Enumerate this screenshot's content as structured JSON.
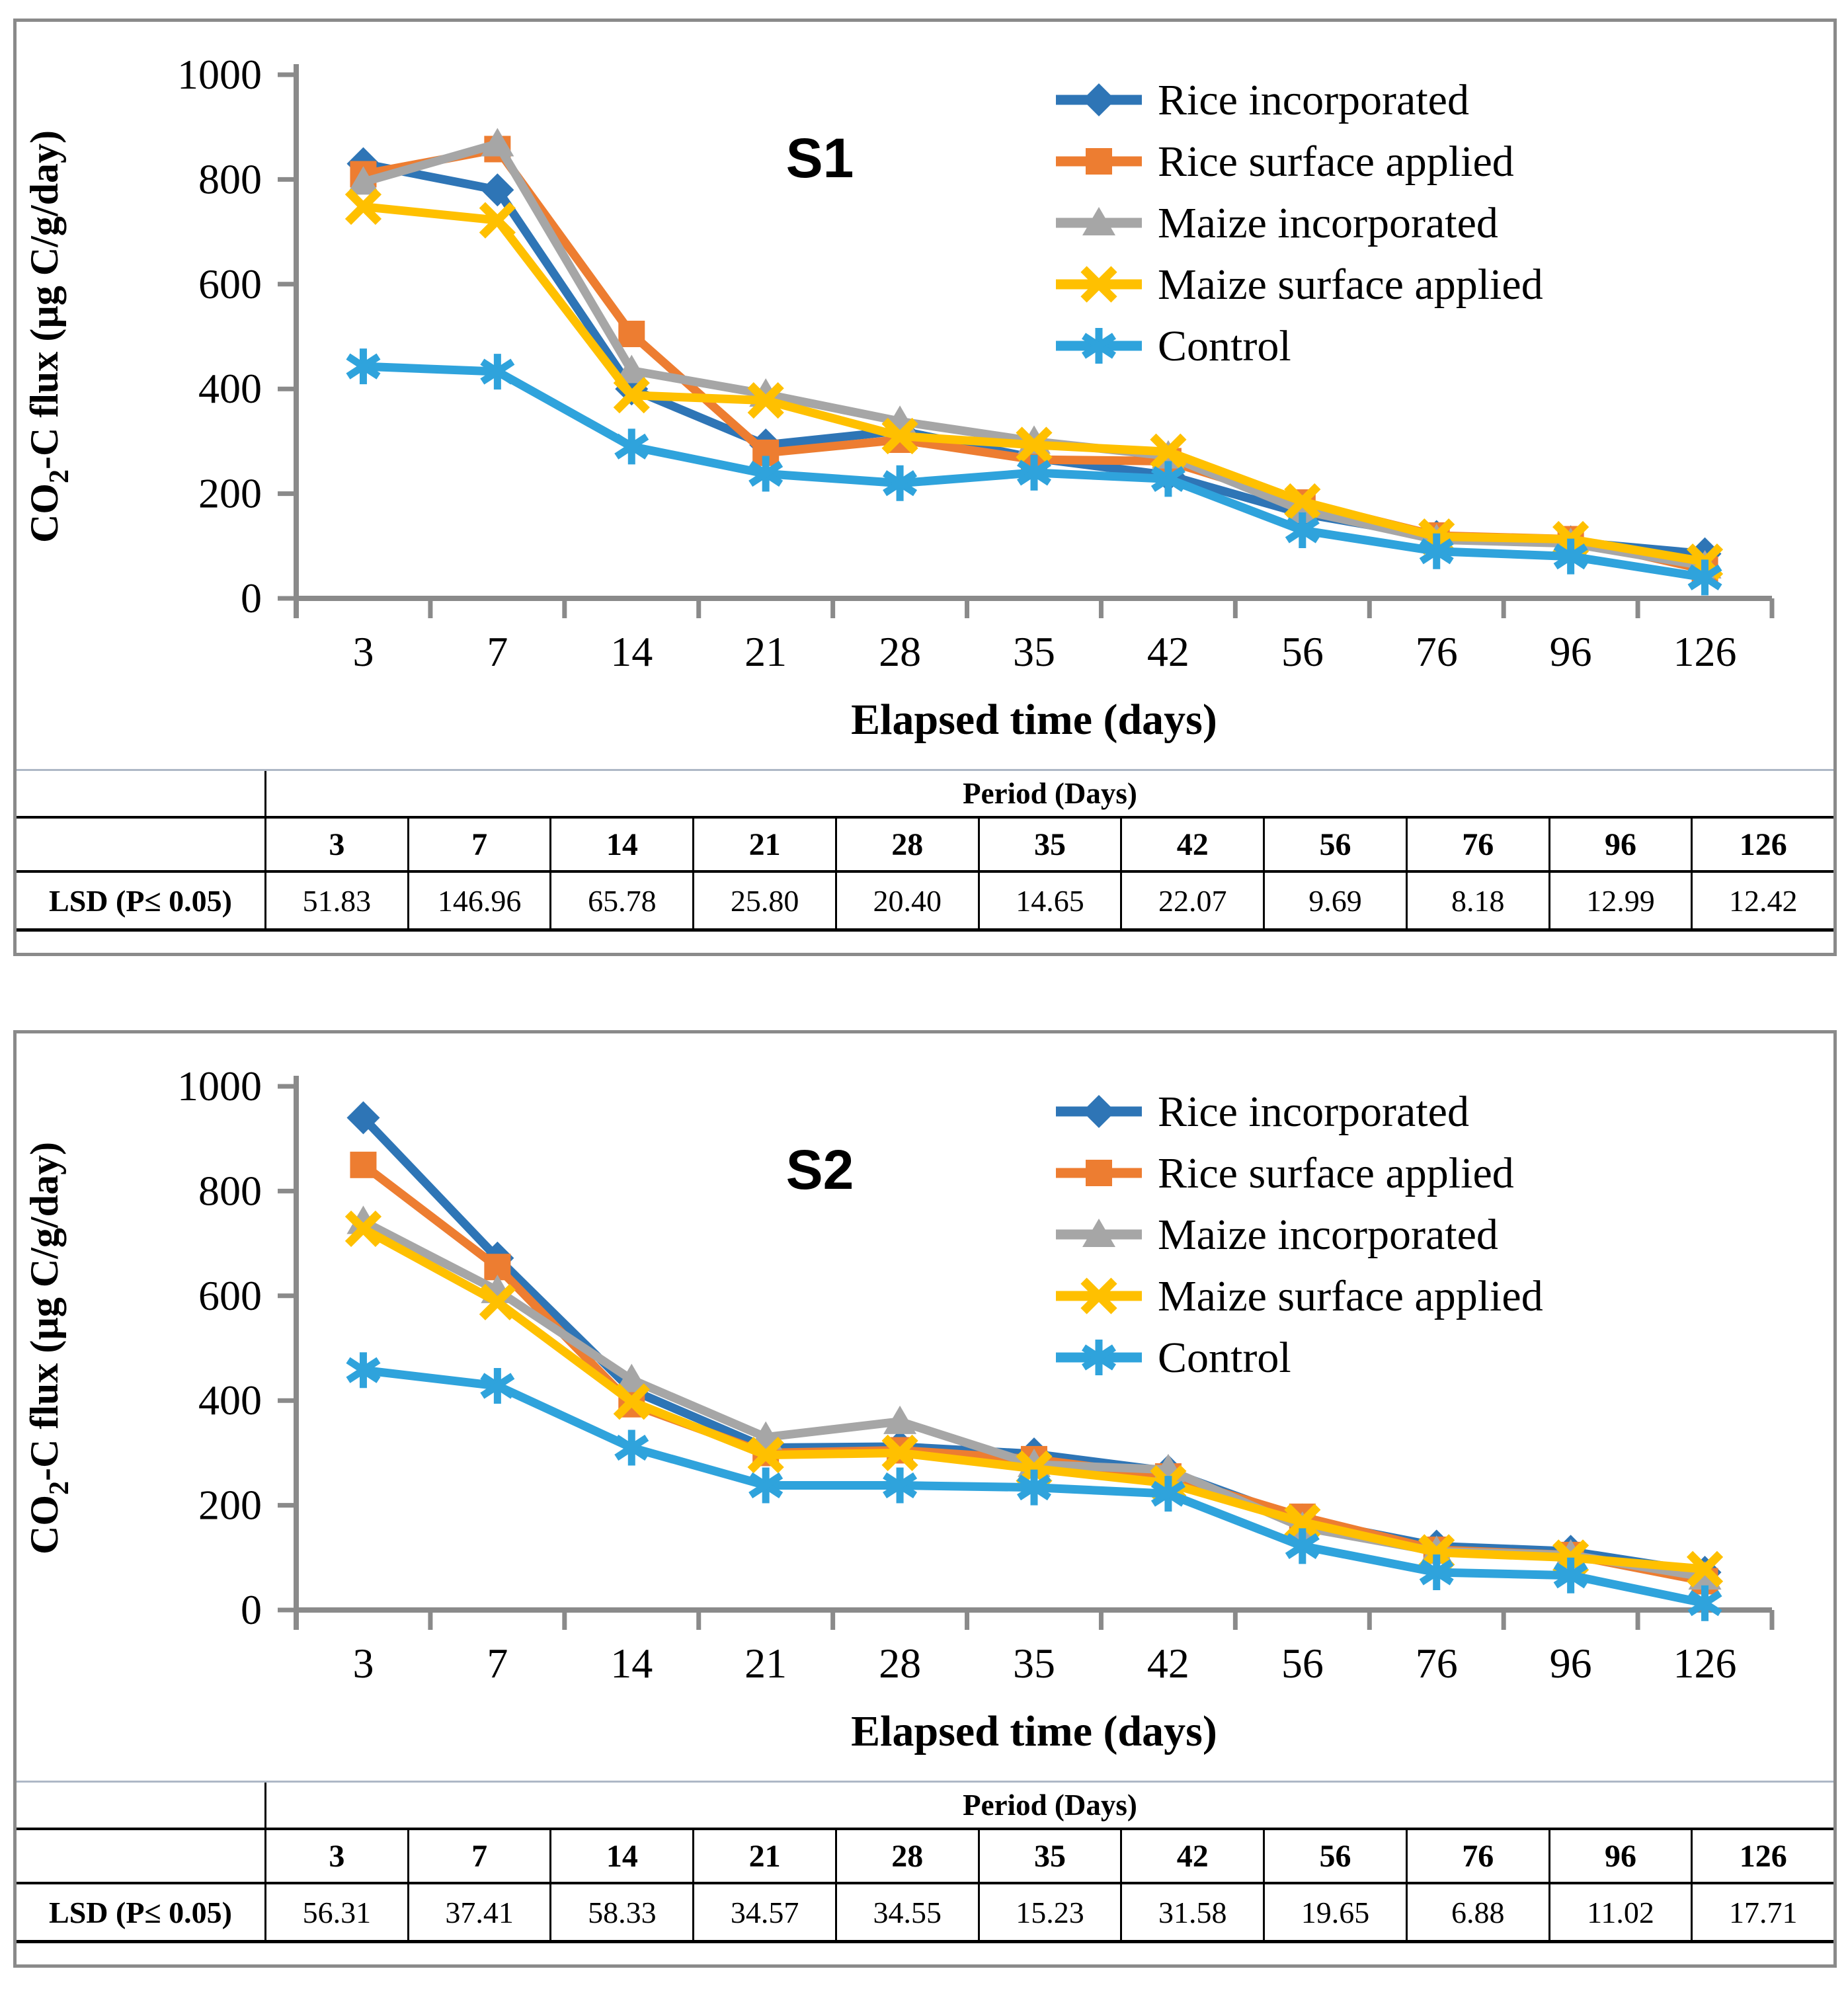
{
  "chart_data": [
    {
      "type": "line",
      "title": "S1",
      "xlabel": "Elapsed time (days)",
      "ylabel": "CO2-C flux (µg C/g/day)",
      "ylabel_rich": {
        "prefix": "CO",
        "sub": "2",
        "suffix": "-C flux (µg C/g/day)"
      },
      "ylim": [
        0,
        1000
      ],
      "y_ticks": [
        0,
        200,
        400,
        600,
        800,
        1000
      ],
      "grid": "off",
      "legend_position": "inside-top-right",
      "categories": [
        "3",
        "7",
        "14",
        "21",
        "28",
        "35",
        "42",
        "56",
        "76",
        "96",
        "126"
      ],
      "series": [
        {
          "name": "Rice incorporated",
          "marker": "diamond",
          "color": "#2E75B6",
          "values": [
            830,
            780,
            400,
            293,
            320,
            268,
            235,
            162,
            118,
            108,
            85
          ]
        },
        {
          "name": "Rice surface applied",
          "marker": "square",
          "color": "#ED7D31",
          "values": [
            810,
            858,
            505,
            278,
            303,
            265,
            262,
            183,
            120,
            113,
            55
          ]
        },
        {
          "name": "Maize incorporated",
          "marker": "triangle",
          "color": "#A6A6A6",
          "values": [
            795,
            868,
            435,
            390,
            338,
            300,
            272,
            168,
            112,
            105,
            62
          ]
        },
        {
          "name": "Maize surface applied",
          "marker": "x",
          "color": "#FFC000",
          "values": [
            748,
            722,
            388,
            378,
            310,
            293,
            280,
            185,
            118,
            113,
            70
          ]
        },
        {
          "name": "Control",
          "marker": "asterisk",
          "color": "#2FA3DC",
          "values": [
            443,
            433,
            290,
            238,
            220,
            240,
            228,
            130,
            90,
            80,
            40
          ]
        }
      ],
      "lsd_table": {
        "header": "Period (Days)",
        "row_label": "LSD (P≤ 0.05)",
        "values": [
          "51.83",
          "146.96",
          "65.78",
          "25.80",
          "20.40",
          "14.65",
          "22.07",
          "9.69",
          "8.18",
          "12.99",
          "12.42"
        ]
      }
    },
    {
      "type": "line",
      "title": "S2",
      "xlabel": "Elapsed time (days)",
      "ylabel": "CO2-C flux (µg C/g/day)",
      "ylabel_rich": {
        "prefix": "CO",
        "sub": "2",
        "suffix": "-C flux (µg C/g/day)"
      },
      "ylim": [
        0,
        1000
      ],
      "y_ticks": [
        0,
        200,
        400,
        600,
        800,
        1000
      ],
      "grid": "off",
      "legend_position": "inside-top-right",
      "categories": [
        "3",
        "7",
        "14",
        "21",
        "28",
        "35",
        "42",
        "56",
        "76",
        "96",
        "126"
      ],
      "series": [
        {
          "name": "Rice incorporated",
          "marker": "diamond",
          "color": "#2E75B6",
          "values": [
            940,
            672,
            420,
            310,
            312,
            298,
            265,
            172,
            122,
            112,
            72
          ]
        },
        {
          "name": "Rice surface applied",
          "marker": "square",
          "color": "#ED7D31",
          "values": [
            850,
            655,
            393,
            300,
            305,
            288,
            255,
            178,
            115,
            105,
            55
          ]
        },
        {
          "name": "Maize incorporated",
          "marker": "triangle",
          "color": "#A6A6A6",
          "values": [
            742,
            610,
            440,
            330,
            360,
            278,
            268,
            158,
            112,
            105,
            63
          ]
        },
        {
          "name": "Maize surface applied",
          "marker": "x",
          "color": "#FFC000",
          "values": [
            728,
            588,
            398,
            296,
            300,
            270,
            242,
            168,
            110,
            100,
            78
          ]
        },
        {
          "name": "Control",
          "marker": "asterisk",
          "color": "#2FA3DC",
          "values": [
            458,
            428,
            310,
            238,
            238,
            234,
            222,
            122,
            72,
            66,
            13
          ]
        }
      ],
      "lsd_table": {
        "header": "Period (Days)",
        "row_label": "LSD (P≤ 0.05)",
        "values": [
          "56.31",
          "37.41",
          "58.33",
          "34.57",
          "34.55",
          "15.23",
          "31.58",
          "19.65",
          "6.88",
          "11.02",
          "17.71"
        ]
      }
    }
  ],
  "style": {
    "axis_color": "#8a8a8a",
    "text_color": "#000000",
    "panel_border_color": "#8a8a8a"
  }
}
